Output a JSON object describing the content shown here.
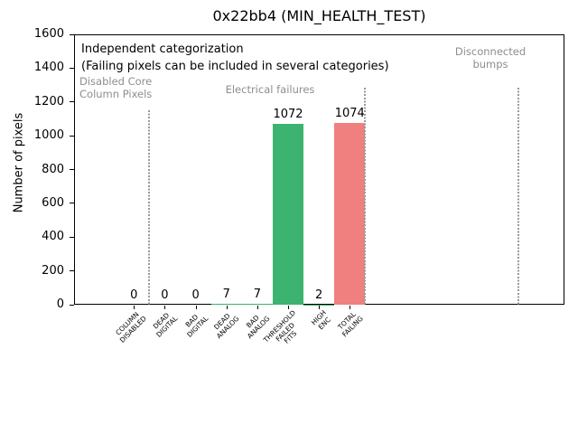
{
  "window": {
    "background": "#ffffff"
  },
  "chart_data": {
    "type": "bar",
    "title": "0x22bb4 (MIN_HEALTH_TEST)",
    "xlabel": "",
    "ylabel": "Number of pixels",
    "ylim": [
      0,
      1600
    ],
    "yticks": [
      0,
      200,
      400,
      600,
      800,
      1000,
      1200,
      1400,
      1600
    ],
    "grid": false,
    "legend": null,
    "categories": [
      "COLUMN\nDISABLED",
      "DEAD\nDIGITAL",
      "BAD\nDIGITAL",
      "DEAD\nANALOG",
      "BAD\nANALOG",
      "THRESHOLD\nFAILED\nFITS",
      "HIGH\nENC",
      "TOTAL\nFAILING"
    ],
    "values": [
      0,
      0,
      0,
      7,
      7,
      1072,
      2,
      1074
    ],
    "value_labels": [
      "0",
      "0",
      "0",
      "7",
      "7",
      "1072",
      "2",
      "1074"
    ],
    "bar_colors": [
      "#3CB371",
      "#3CB371",
      "#3CB371",
      "#3CB371",
      "#3CB371",
      "#3CB371",
      "#3CB371",
      "#F08080"
    ],
    "annotations": {
      "note_line1": "Independent categorization",
      "note_line2": "(Failing pixels can be included in several categories)",
      "group_labels": [
        "Disabled Core\nColumn Pixels",
        "Electrical failures",
        "Disconnected\nbumps"
      ]
    }
  },
  "colors": {
    "bar_green": "#3CB371",
    "bar_red": "#F08080",
    "muted_text": "#8e8e8e",
    "separator_gray": "#999999",
    "axis_black": "#000000"
  }
}
